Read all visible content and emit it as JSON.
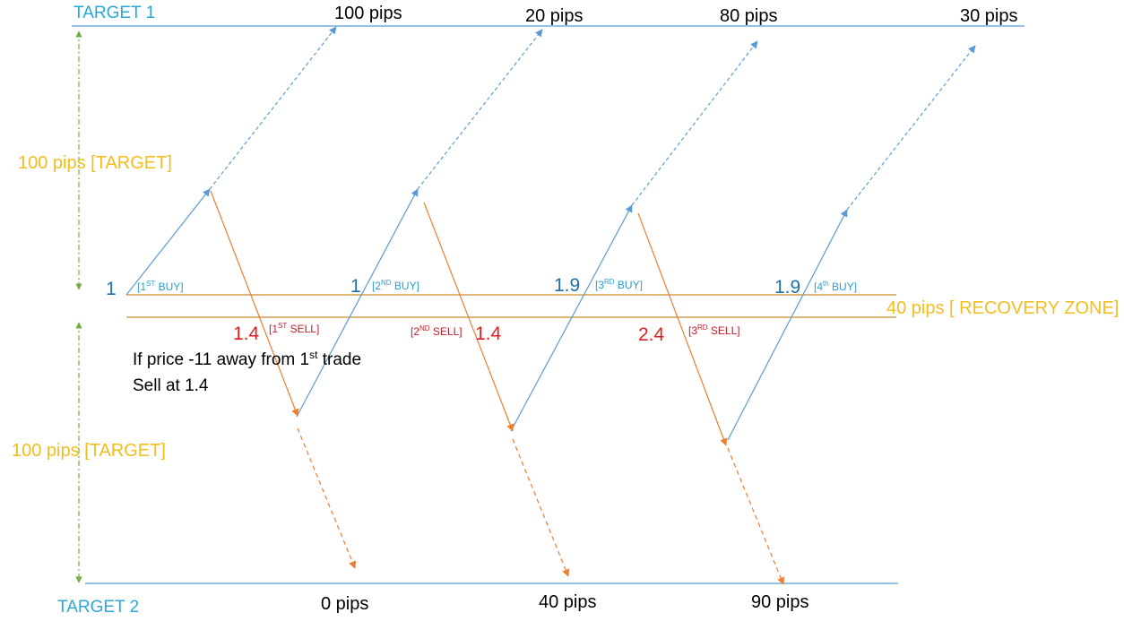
{
  "colors": {
    "buy": "#5b9bd5",
    "sell": "#ed7d31",
    "zone": "#c9892a",
    "target_line": "#5b9bd5",
    "guide": "#70ad47",
    "target_text": "#29a8d8",
    "zone_text": "#f2bd1d",
    "buy_lot": "#1f6fa3",
    "sell_lot": "#e02020"
  },
  "labels": {
    "target1": "TARGET 1",
    "target2": "TARGET 2",
    "upper_target": "100 pips [TARGET]",
    "lower_target": "100 pips [TARGET]",
    "recovery_zone": "40 pips [ RECOVERY ZONE]"
  },
  "top_results": [
    "100 pips",
    "20 pips",
    "80 pips",
    "30 pips"
  ],
  "bottom_results": [
    "0 pips",
    "40 pips",
    "90 pips"
  ],
  "buys": [
    {
      "lot": "1",
      "tag_open": "[1",
      "tag_sup": "ST",
      "tag_close": " BUY]"
    },
    {
      "lot": "1",
      "tag_open": "[2",
      "tag_sup": "ND",
      "tag_close": " BUY]"
    },
    {
      "lot": "1.9",
      "tag_open": "[3",
      "tag_sup": "RD",
      "tag_close": " BUY]"
    },
    {
      "lot": "1.9",
      "tag_open": "[4",
      "tag_sup": "th",
      "tag_close": " BUY]"
    }
  ],
  "sells": [
    {
      "lot": "1.4",
      "tag_open": "[1",
      "tag_sup": "ST",
      "tag_close": " SELL]"
    },
    {
      "lot": "1.4",
      "tag_open": "[2",
      "tag_sup": "ND",
      "tag_close": " SELL]"
    },
    {
      "lot": "2.4",
      "tag_open": "[3",
      "tag_sup": "RD",
      "tag_close": " SELL]"
    }
  ],
  "note": {
    "line1_start": "If price -11 away from 1",
    "line1_sup": "st",
    "line1_end": " trade",
    "line2": "Sell at 1.4"
  }
}
